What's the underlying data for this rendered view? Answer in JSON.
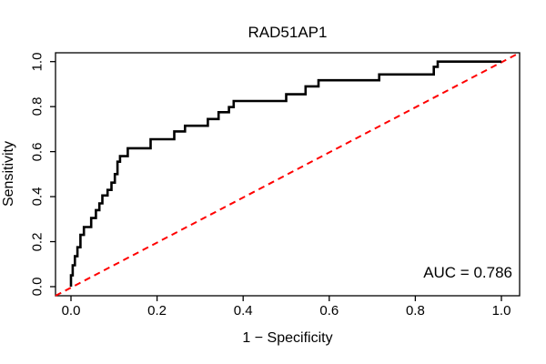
{
  "title": "RAD51AP1",
  "axes": {
    "x": {
      "label": "1 − Specificity",
      "tick_labels": [
        "0.0",
        "0.2",
        "0.4",
        "0.6",
        "0.8",
        "1.0"
      ],
      "tick_values": [
        0.0,
        0.2,
        0.4,
        0.6,
        0.8,
        1.0
      ],
      "range": [
        0,
        1
      ]
    },
    "y": {
      "label": "Sensitivity",
      "tick_labels": [
        "0.0",
        "0.2",
        "0.4",
        "0.6",
        "0.8",
        "1.0"
      ],
      "tick_values": [
        0.0,
        0.2,
        0.4,
        0.6,
        0.8,
        1.0
      ],
      "range": [
        0,
        1
      ]
    }
  },
  "annotation": {
    "auc_label": "AUC = 0.786",
    "auc_value": 0.786
  },
  "colors": {
    "roc_curve": "#000000",
    "reference_line": "#ff0000",
    "axis": "#000000",
    "background": "#ffffff"
  },
  "chart_data": {
    "type": "line",
    "title": "RAD51AP1",
    "xlabel": "1 − Specificity",
    "ylabel": "Sensitivity",
    "xlim": [
      0,
      1
    ],
    "ylim": [
      0,
      1
    ],
    "grid": false,
    "legend": "none",
    "auc": 0.786,
    "series": [
      {
        "name": "ROC curve",
        "color": "#000000",
        "style": "solid-step",
        "points": [
          [
            0.0,
            0.0
          ],
          [
            0.0,
            0.05
          ],
          [
            0.004,
            0.05
          ],
          [
            0.004,
            0.095
          ],
          [
            0.009,
            0.095
          ],
          [
            0.009,
            0.135
          ],
          [
            0.015,
            0.135
          ],
          [
            0.015,
            0.175
          ],
          [
            0.022,
            0.175
          ],
          [
            0.022,
            0.23
          ],
          [
            0.03,
            0.23
          ],
          [
            0.03,
            0.265
          ],
          [
            0.047,
            0.265
          ],
          [
            0.047,
            0.305
          ],
          [
            0.058,
            0.305
          ],
          [
            0.058,
            0.34
          ],
          [
            0.066,
            0.34
          ],
          [
            0.066,
            0.37
          ],
          [
            0.073,
            0.37
          ],
          [
            0.073,
            0.405
          ],
          [
            0.085,
            0.405
          ],
          [
            0.085,
            0.43
          ],
          [
            0.094,
            0.43
          ],
          [
            0.094,
            0.462
          ],
          [
            0.102,
            0.462
          ],
          [
            0.102,
            0.5
          ],
          [
            0.108,
            0.5
          ],
          [
            0.108,
            0.555
          ],
          [
            0.114,
            0.555
          ],
          [
            0.114,
            0.58
          ],
          [
            0.132,
            0.58
          ],
          [
            0.132,
            0.615
          ],
          [
            0.185,
            0.615
          ],
          [
            0.185,
            0.655
          ],
          [
            0.24,
            0.655
          ],
          [
            0.24,
            0.69
          ],
          [
            0.265,
            0.69
          ],
          [
            0.265,
            0.715
          ],
          [
            0.318,
            0.715
          ],
          [
            0.318,
            0.745
          ],
          [
            0.343,
            0.745
          ],
          [
            0.343,
            0.775
          ],
          [
            0.367,
            0.775
          ],
          [
            0.367,
            0.798
          ],
          [
            0.378,
            0.798
          ],
          [
            0.378,
            0.825
          ],
          [
            0.5,
            0.825
          ],
          [
            0.5,
            0.855
          ],
          [
            0.545,
            0.855
          ],
          [
            0.545,
            0.89
          ],
          [
            0.575,
            0.89
          ],
          [
            0.575,
            0.917
          ],
          [
            0.716,
            0.917
          ],
          [
            0.716,
            0.943
          ],
          [
            0.843,
            0.943
          ],
          [
            0.843,
            0.977
          ],
          [
            0.852,
            0.977
          ],
          [
            0.852,
            1.0
          ],
          [
            1.0,
            1.0
          ]
        ]
      },
      {
        "name": "reference diagonal",
        "color": "#ff0000",
        "style": "dashed",
        "points": [
          [
            0.0,
            0.0
          ],
          [
            1.0,
            1.0
          ]
        ]
      }
    ]
  }
}
